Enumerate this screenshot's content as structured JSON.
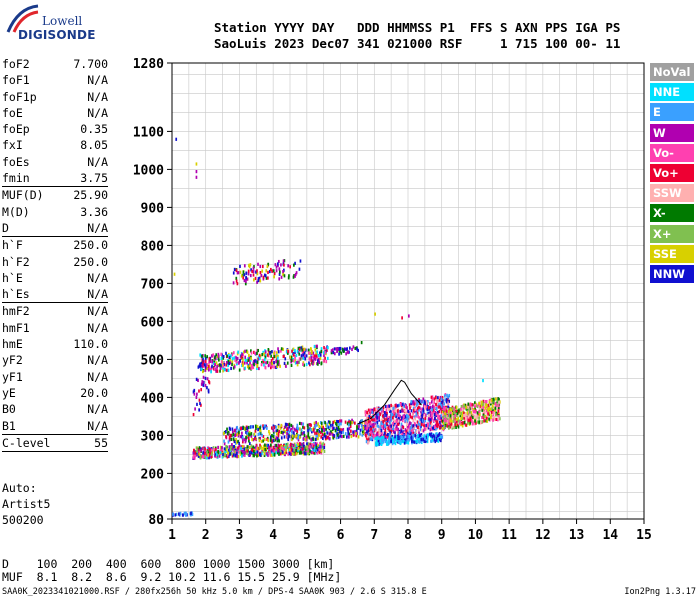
{
  "logo": {
    "line1": "Lowell",
    "line2": "DIGISONDE"
  },
  "header": {
    "labels": "Station YYYY DAY   DDD HHMMSS P1  FFS S AXN PPS IGA PS",
    "values": "SaoLuis 2023 Dec07 341 021000 RSF     1 715 100 00- 11"
  },
  "params": [
    {
      "key": "foF2",
      "value": "7.700"
    },
    {
      "key": "foF1",
      "value": "N/A"
    },
    {
      "key": "foF1p",
      "value": "N/A"
    },
    {
      "key": "foE",
      "value": "N/A"
    },
    {
      "key": "foEp",
      "value": "0.35"
    },
    {
      "key": "fxI",
      "value": "8.05"
    },
    {
      "key": "foEs",
      "value": "N/A"
    },
    {
      "key": "fmin",
      "value": "3.75",
      "sep_after": true
    },
    {
      "key": "MUF(D)",
      "value": "25.90"
    },
    {
      "key": "M(D)",
      "value": "3.36"
    },
    {
      "key": "D",
      "value": "N/A",
      "sep_after": true
    },
    {
      "key": "h`F",
      "value": "250.0"
    },
    {
      "key": "h`F2",
      "value": "250.0"
    },
    {
      "key": "h`E",
      "value": "N/A"
    },
    {
      "key": "h`Es",
      "value": "N/A",
      "sep_after": true
    },
    {
      "key": "hmF2",
      "value": "N/A"
    },
    {
      "key": "hmF1",
      "value": "N/A"
    },
    {
      "key": "hmE",
      "value": "110.0"
    },
    {
      "key": "yF2",
      "value": "N/A"
    },
    {
      "key": "yF1",
      "value": "N/A"
    },
    {
      "key": "yE",
      "value": "20.0"
    },
    {
      "key": "B0",
      "value": "N/A"
    },
    {
      "key": "B1",
      "value": "N/A",
      "sep_after": true
    },
    {
      "key": "C-level",
      "value": "55",
      "sep_after": true
    }
  ],
  "notes": [
    "Auto:",
    "Artist5",
    "500200"
  ],
  "legend": [
    {
      "label": "NoVal",
      "color": "#a0a0a0"
    },
    {
      "label": "NNE",
      "color": "#00e0ff"
    },
    {
      "label": "E",
      "color": "#3aa0ff"
    },
    {
      "label": "W",
      "color": "#b000b0"
    },
    {
      "label": "Vo-",
      "color": "#ff40b0"
    },
    {
      "label": "Vo+",
      "color": "#ee0033"
    },
    {
      "label": "SSW",
      "color": "#ffb0b0"
    },
    {
      "label": "X-",
      "color": "#007a00"
    },
    {
      "label": "X+",
      "color": "#80c050"
    },
    {
      "label": "SSE",
      "color": "#d8d000"
    },
    {
      "label": "NNW",
      "color": "#1010d0"
    }
  ],
  "bottom": {
    "d_row": "D    100  200  400  600  800 1000 1500 3000 [km]",
    "muf_row": "MUF  8.1  8.2  8.6  9.2 10.2 11.6 15.5 25.9 [MHz]"
  },
  "footer": "SAA0K_2023341021000.RSF / 280fx256h 50 kHz 5.0 km / DPS-4 SAA0K 903 / 2.6 S 315.8 E",
  "version": "Ion2Png 1.3.17",
  "chart_data": {
    "type": "scatter",
    "xlim": [
      1,
      15
    ],
    "ylim": [
      80,
      1280
    ],
    "x_ticks": [
      1,
      2,
      3,
      4,
      5,
      6,
      7,
      8,
      9,
      10,
      11,
      12,
      13,
      14,
      15
    ],
    "y_ticks": [
      80,
      200,
      300,
      400,
      500,
      600,
      700,
      800,
      900,
      1000,
      1100,
      1280
    ],
    "grid": true,
    "clusters": [
      {
        "x": [
          1.6,
          5.5
        ],
        "y": [
          235,
          275
        ],
        "density": 700,
        "colors": [
          "#1010d0",
          "#b000b0",
          "#ee0033",
          "#ff40b0",
          "#d8d000",
          "#007a00",
          "#80c050",
          "#00e0ff"
        ]
      },
      {
        "x": [
          2.5,
          6.8
        ],
        "y": [
          270,
          335
        ],
        "density": 500,
        "colors": [
          "#1010d0",
          "#b000b0",
          "#ee0033",
          "#3aa0ff",
          "#d8d000",
          "#007a00"
        ]
      },
      {
        "x": [
          6.7,
          9.2
        ],
        "y": [
          275,
          400
        ],
        "density": 900,
        "colors": [
          "#ee0033",
          "#ff40b0",
          "#b000b0",
          "#ffb0b0",
          "#3aa0ff",
          "#1010d0"
        ]
      },
      {
        "x": [
          7.0,
          9.0
        ],
        "y": [
          270,
          300
        ],
        "density": 250,
        "colors": [
          "#3aa0ff",
          "#00e0ff",
          "#1010d0"
        ]
      },
      {
        "x": [
          9.0,
          10.7
        ],
        "y": [
          310,
          390
        ],
        "density": 450,
        "colors": [
          "#ee0033",
          "#ff40b0",
          "#ffb0b0",
          "#007a00",
          "#d8d000",
          "#80c050"
        ]
      },
      {
        "x": [
          1.8,
          5.6
        ],
        "y": [
          460,
          530
        ],
        "density": 450,
        "colors": [
          "#1010d0",
          "#b000b0",
          "#ee0033",
          "#d8d000",
          "#007a00",
          "#00e0ff",
          "#ff40b0"
        ]
      },
      {
        "x": [
          5.7,
          6.5
        ],
        "y": [
          505,
          530
        ],
        "density": 40,
        "colors": [
          "#007a00",
          "#b000b0",
          "#1010d0"
        ]
      },
      {
        "x": [
          2.8,
          4.8
        ],
        "y": [
          690,
          760
        ],
        "density": 110,
        "colors": [
          "#1010d0",
          "#b000b0",
          "#007a00",
          "#d8d000",
          "#ee0033"
        ]
      },
      {
        "x": [
          1.6,
          2.1
        ],
        "y": [
          340,
          520
        ],
        "density": 40,
        "colors": [
          "#b000b0",
          "#ee0033",
          "#1010d0"
        ]
      },
      {
        "x": [
          1.0,
          1.6
        ],
        "y": [
          84,
          92
        ],
        "density": 25,
        "colors": [
          "#1010d0",
          "#3aa0ff"
        ]
      }
    ],
    "isolated_points": [
      {
        "x": 1.7,
        "y": 1010,
        "color": "#d8d000"
      },
      {
        "x": 1.7,
        "y": 990,
        "color": "#b000b0"
      },
      {
        "x": 1.7,
        "y": 975,
        "color": "#b000b0"
      },
      {
        "x": 1.1,
        "y": 1075,
        "color": "#1010d0"
      },
      {
        "x": 1.05,
        "y": 720,
        "color": "#d8d000"
      },
      {
        "x": 7.8,
        "y": 605,
        "color": "#ee0033"
      },
      {
        "x": 8.0,
        "y": 610,
        "color": "#b000b0"
      },
      {
        "x": 7.0,
        "y": 615,
        "color": "#d8d000"
      },
      {
        "x": 6.6,
        "y": 540,
        "color": "#007a00"
      },
      {
        "x": 10.2,
        "y": 440,
        "color": "#00e0ff"
      }
    ],
    "trace": [
      [
        6.5,
        330
      ],
      [
        6.9,
        345
      ],
      [
        7.3,
        380
      ],
      [
        7.6,
        420
      ],
      [
        7.8,
        445
      ],
      [
        7.9,
        440
      ],
      [
        8.1,
        410
      ],
      [
        8.4,
        380
      ]
    ]
  }
}
